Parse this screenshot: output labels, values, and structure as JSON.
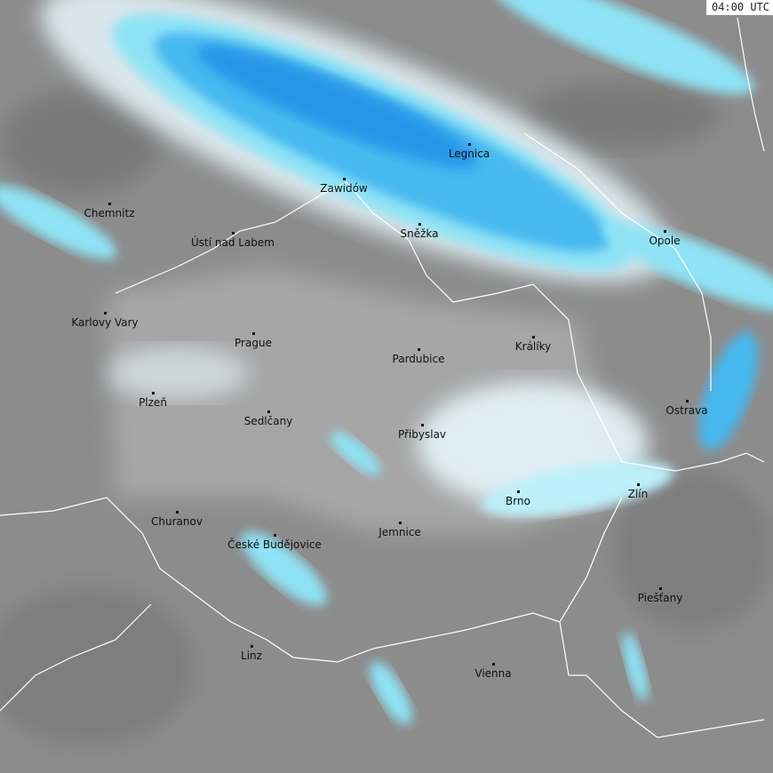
{
  "timestamp": "04:00 UTC",
  "colors": {
    "background": "#8c8c8c",
    "light_terrain": "#a6a6a6",
    "dark_terrain": "#7a7a7a",
    "precip_very_light": "#e6f6fc",
    "precip_light": "#8fe3f5",
    "precip_moderate": "#46b8f0",
    "precip_heavy": "#1e88e5",
    "border": "#ffffff"
  },
  "cities": [
    {
      "name": "Chemnitz"
    },
    {
      "name": "Ústí nad Labem"
    },
    {
      "name": "Zawidów"
    },
    {
      "name": "Legnica"
    },
    {
      "name": "Sněžka"
    },
    {
      "name": "Opole"
    },
    {
      "name": "Karlovy Vary"
    },
    {
      "name": "Prague"
    },
    {
      "name": "Pardubice"
    },
    {
      "name": "Králíky"
    },
    {
      "name": "Plzeň"
    },
    {
      "name": "Sedlčany"
    },
    {
      "name": "Přibyslav"
    },
    {
      "name": "Ostrava"
    },
    {
      "name": "Brno"
    },
    {
      "name": "Zlín"
    },
    {
      "name": "Churanov"
    },
    {
      "name": "České Budějovice"
    },
    {
      "name": "Jemnice"
    },
    {
      "name": "Piešťany"
    },
    {
      "name": "Linz"
    },
    {
      "name": "Vienna"
    }
  ]
}
